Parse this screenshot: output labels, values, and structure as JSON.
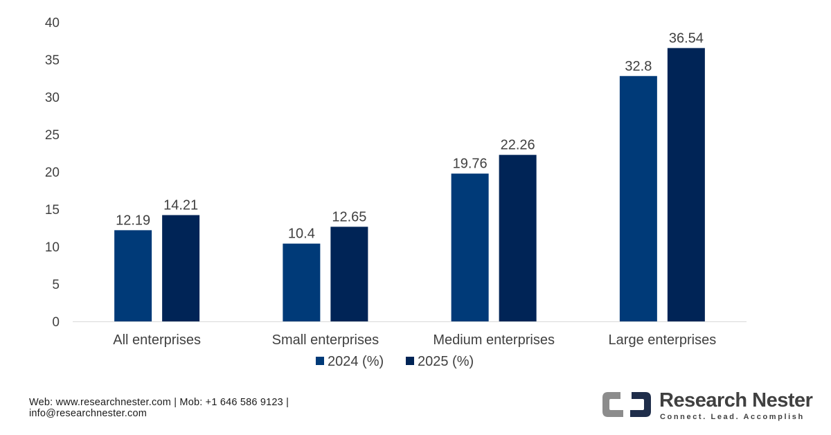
{
  "chart_data": {
    "type": "bar",
    "categories": [
      "All enterprises",
      "Small enterprises",
      "Medium enterprises",
      "Large enterprises"
    ],
    "series": [
      {
        "name": "2024 (%)",
        "values": [
          12.19,
          10.4,
          19.76,
          32.8
        ],
        "color": "#003a78"
      },
      {
        "name": "2025 (%)",
        "values": [
          14.21,
          12.65,
          22.26,
          36.54
        ],
        "color": "#002456"
      }
    ],
    "data_labels": [
      [
        "12.19",
        "10.4",
        "19.76",
        "32.8"
      ],
      [
        "14.21",
        "12.65",
        "22.26",
        "36.54"
      ]
    ],
    "y_ticks": [
      "0",
      "5",
      "10",
      "15",
      "20",
      "25",
      "30",
      "35",
      "40"
    ],
    "ylim": [
      0,
      40
    ],
    "grid": false,
    "legend_position": "bottom",
    "title": "",
    "xlabel": "",
    "ylabel": ""
  },
  "footer": {
    "line1": "Web: www.researchnester.com | Mob: +1 646 586 9123 |",
    "line2": "info@researchnester.com"
  },
  "logo": {
    "name": "Research Nester",
    "tagline": "Connect. Lead. Accomplish"
  }
}
